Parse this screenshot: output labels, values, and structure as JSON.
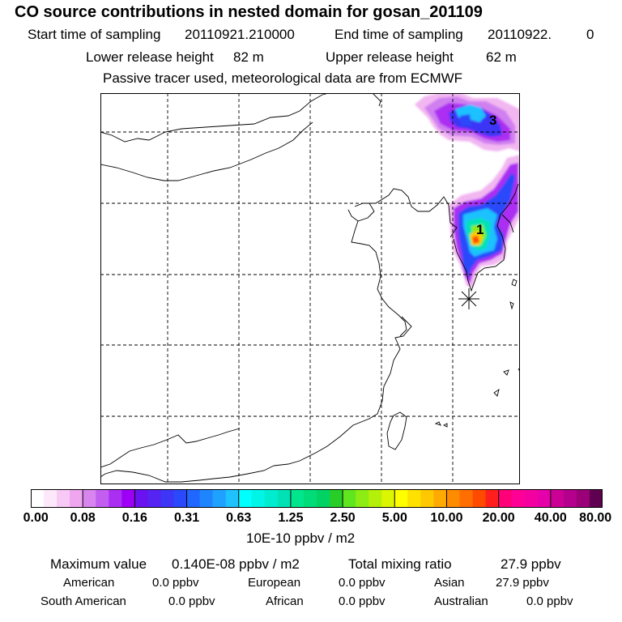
{
  "header": {
    "title": "CO  source contributions in nested domain for gosan_201109",
    "start_label": "Start time of sampling",
    "start_value": "20110921.210000",
    "end_label": "End time of sampling",
    "end_value": "20110922.",
    "end_value_2": "0",
    "lower_label": "Lower release height",
    "lower_value": "82 m",
    "upper_label": "Upper release height",
    "upper_value": "62 m",
    "passive_note": "Passive tracer used, meteorological data are from ECMWF"
  },
  "map": {
    "labels": [
      "1",
      "3"
    ],
    "receptor_marker": "asterisk-icon"
  },
  "colorbar": {
    "ticks": [
      "0.00",
      "0.08",
      "0.16",
      "0.31",
      "0.63",
      "1.25",
      "2.50",
      "5.00",
      "10.00",
      "20.00",
      "40.00",
      "80.00"
    ],
    "units": "10E-10 ppbv / m2",
    "colors": [
      "#ffffff",
      "#fde8fb",
      "#f7c9f4",
      "#efa6ef",
      "#d885ef",
      "#c25ff0",
      "#ab2ff2",
      "#9d00f5",
      "#6a12f0",
      "#5523f2",
      "#3d36f6",
      "#2a49fa",
      "#1f67ff",
      "#1f85ff",
      "#1fa2ff",
      "#1fc1ff",
      "#00ffff",
      "#00f5e6",
      "#00ecce",
      "#00e2b5",
      "#00e68c",
      "#00dc78",
      "#00d264",
      "#28cd28",
      "#5fe61e",
      "#8cec14",
      "#b4f00a",
      "#dcf500",
      "#ffff00",
      "#ffe100",
      "#ffc800",
      "#ffaa00",
      "#ff8c00",
      "#ff6e00",
      "#ff4b00",
      "#ff1e1e",
      "#ff0078",
      "#ff0096",
      "#f500a0",
      "#e600aa",
      "#cd0096",
      "#b4008c",
      "#9b0078",
      "#5f0050"
    ]
  },
  "stats": {
    "max_label": "Maximum value",
    "max_value": "0.140E-08 ppbv / m2",
    "total_label": "Total mixing ratio",
    "total_value": "27.9 ppbv",
    "regions": [
      {
        "name": "American",
        "value": "0.0 ppbv"
      },
      {
        "name": "European",
        "value": "0.0 ppbv"
      },
      {
        "name": "Asian",
        "value": "27.9 ppbv"
      },
      {
        "name": "South American",
        "value": "0.0 ppbv"
      },
      {
        "name": "African",
        "value": "0.0 ppbv"
      },
      {
        "name": "Australian",
        "value": "0.0 ppbv"
      }
    ]
  }
}
